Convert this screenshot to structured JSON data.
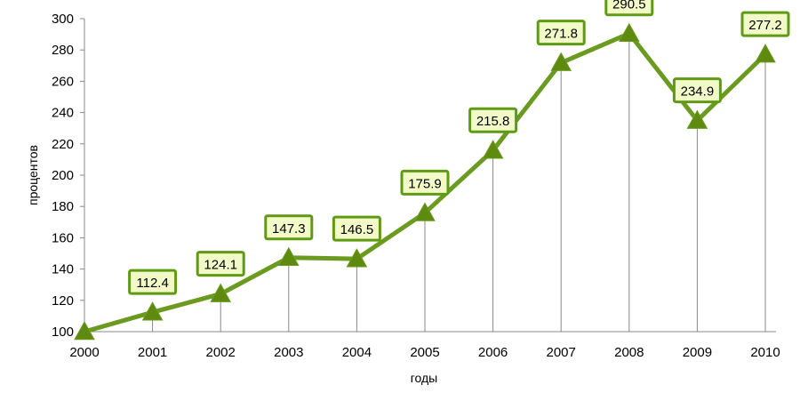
{
  "chart_data": {
    "type": "line",
    "title": "",
    "xlabel": "годы",
    "ylabel": "процентов",
    "categories": [
      "2000",
      "2001",
      "2002",
      "2003",
      "2004",
      "2005",
      "2006",
      "2007",
      "2008",
      "2009",
      "2010"
    ],
    "series": [
      {
        "values": [
          100,
          112.4,
          124.1,
          147.3,
          146.5,
          175.9,
          215.8,
          271.8,
          290.5,
          234.9,
          277.2
        ]
      }
    ],
    "data_labels": [
      "",
      "112.4",
      "124.1",
      "147.3",
      "146.5",
      "175.9",
      "215.8",
      "271.8",
      "290.5",
      "234.9",
      "277.2"
    ],
    "ylim": [
      100,
      300
    ],
    "yticks": [
      "100",
      "120",
      "140",
      "160",
      "180",
      "200",
      "220",
      "240",
      "260",
      "280",
      "300"
    ],
    "grid": false,
    "drop_lines": true,
    "marker": "triangle",
    "legend": "none",
    "colors": {
      "line": "#6a9a1f",
      "marker": "#5e8a10",
      "label_fill": "#f2fbc8",
      "label_border": "#5e9a14",
      "axis": "#888888",
      "drop_line": "#888888"
    }
  }
}
